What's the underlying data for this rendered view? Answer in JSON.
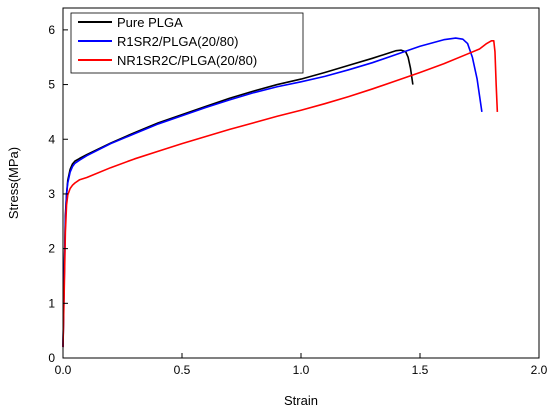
{
  "chart_data": {
    "type": "line",
    "xlabel": "Strain",
    "ylabel": "Stress(MPa)",
    "xlim": [
      0.0,
      2.0
    ],
    "ylim": [
      0,
      6.4
    ],
    "xticks": [
      "0.0",
      "0.5",
      "1.0",
      "1.5",
      "2.0"
    ],
    "yticks": [
      "0",
      "1",
      "2",
      "3",
      "4",
      "5",
      "6"
    ],
    "legend_position": "top-left",
    "series": [
      {
        "name": "Pure PLGA",
        "color": "#000000",
        "x": [
          0,
          0.005,
          0.01,
          0.015,
          0.02,
          0.03,
          0.04,
          0.05,
          0.07,
          0.1,
          0.2,
          0.3,
          0.4,
          0.5,
          0.6,
          0.7,
          0.8,
          0.9,
          1.0,
          1.1,
          1.2,
          1.3,
          1.35,
          1.4,
          1.42,
          1.44,
          1.45,
          1.46,
          1.47
        ],
        "y": [
          0.2,
          1.5,
          2.6,
          3.0,
          3.25,
          3.45,
          3.55,
          3.6,
          3.65,
          3.72,
          3.93,
          4.12,
          4.3,
          4.45,
          4.6,
          4.75,
          4.88,
          5.0,
          5.1,
          5.22,
          5.35,
          5.48,
          5.55,
          5.62,
          5.63,
          5.6,
          5.5,
          5.3,
          5.0
        ]
      },
      {
        "name": "R1SR2/PLGA(20/80)",
        "color": "#0000ff",
        "x": [
          0,
          0.005,
          0.01,
          0.015,
          0.02,
          0.03,
          0.04,
          0.05,
          0.07,
          0.1,
          0.2,
          0.3,
          0.4,
          0.5,
          0.6,
          0.7,
          0.8,
          0.9,
          1.0,
          1.1,
          1.2,
          1.3,
          1.4,
          1.5,
          1.6,
          1.65,
          1.68,
          1.7,
          1.72,
          1.74,
          1.75,
          1.76
        ],
        "y": [
          0.2,
          1.4,
          2.5,
          3.0,
          3.2,
          3.4,
          3.5,
          3.56,
          3.62,
          3.7,
          3.92,
          4.1,
          4.28,
          4.43,
          4.58,
          4.72,
          4.85,
          4.96,
          5.05,
          5.15,
          5.27,
          5.4,
          5.55,
          5.7,
          5.82,
          5.85,
          5.83,
          5.75,
          5.5,
          5.1,
          4.8,
          4.5
        ]
      },
      {
        "name": "NR1SR2C/PLGA(20/80)",
        "color": "#ff0000",
        "x": [
          0,
          0.005,
          0.01,
          0.015,
          0.02,
          0.03,
          0.04,
          0.05,
          0.07,
          0.1,
          0.2,
          0.3,
          0.4,
          0.5,
          0.6,
          0.7,
          0.8,
          0.9,
          1.0,
          1.1,
          1.2,
          1.3,
          1.4,
          1.5,
          1.6,
          1.7,
          1.75,
          1.78,
          1.8,
          1.81,
          1.815,
          1.82,
          1.825
        ],
        "y": [
          0.2,
          1.2,
          2.3,
          2.8,
          2.98,
          3.1,
          3.16,
          3.2,
          3.26,
          3.3,
          3.48,
          3.64,
          3.78,
          3.92,
          4.05,
          4.18,
          4.3,
          4.42,
          4.53,
          4.65,
          4.78,
          4.92,
          5.07,
          5.22,
          5.38,
          5.56,
          5.65,
          5.75,
          5.8,
          5.8,
          5.6,
          5.0,
          4.5
        ]
      }
    ]
  }
}
